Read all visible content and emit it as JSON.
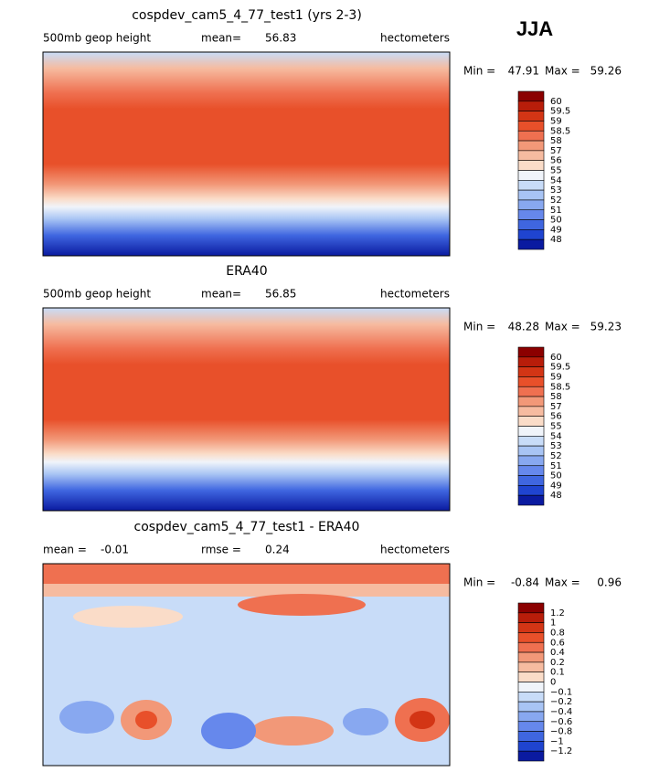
{
  "header": {
    "season": "JJA"
  },
  "panels": [
    {
      "title": "cospdev_cam5_4_77_test1 (yrs 2-3)",
      "field_label": "500mb geop height",
      "stat1": {
        "label": "mean=",
        "value": 56.83
      },
      "units": "hectometers",
      "min": {
        "label": "Min =",
        "value": 47.91
      },
      "max": {
        "label": "Max =",
        "value": 59.26
      },
      "colorbar": {
        "labels": [
          "60",
          "59.5",
          "59",
          "58.5",
          "58",
          "57",
          "56",
          "55",
          "54",
          "53",
          "52",
          "51",
          "50",
          "49",
          "48"
        ],
        "colors": [
          "#8b0000",
          "#b81d0a",
          "#d33515",
          "#e8502a",
          "#ef7050",
          "#f29878",
          "#f6bba0",
          "#fadcc8",
          "#f0f4fa",
          "#c8dcf8",
          "#a8c4f4",
          "#88a8f0",
          "#6688ec",
          "#3f66e0",
          "#1f44d0",
          "#0a1aa0"
        ]
      }
    },
    {
      "title": "ERA40",
      "field_label": "500mb geop height",
      "stat1": {
        "label": "mean=",
        "value": 56.85
      },
      "units": "hectometers",
      "min": {
        "label": "Min =",
        "value": 48.28
      },
      "max": {
        "label": "Max =",
        "value": 59.23
      },
      "colorbar": {
        "labels": [
          "60",
          "59.5",
          "59",
          "58.5",
          "58",
          "57",
          "56",
          "55",
          "54",
          "53",
          "52",
          "51",
          "50",
          "49",
          "48"
        ],
        "colors": [
          "#8b0000",
          "#b81d0a",
          "#d33515",
          "#e8502a",
          "#ef7050",
          "#f29878",
          "#f6bba0",
          "#fadcc8",
          "#f0f4fa",
          "#c8dcf8",
          "#a8c4f4",
          "#88a8f0",
          "#6688ec",
          "#3f66e0",
          "#1f44d0",
          "#0a1aa0"
        ]
      }
    },
    {
      "title": "cospdev_cam5_4_77_test1 - ERA40",
      "field_label": "mean =",
      "stat1": {
        "label": "rmse =",
        "value": 0.24
      },
      "stat0": -0.01,
      "units": "hectometers",
      "min": {
        "label": "Min =",
        "value": -0.84
      },
      "max": {
        "label": "Max =",
        "value": 0.96
      },
      "colorbar": {
        "labels": [
          "1.2",
          "1",
          "0.8",
          "0.6",
          "0.4",
          "0.2",
          "0.1",
          "0",
          "−0.1",
          "−0.2",
          "−0.4",
          "−0.6",
          "−0.8",
          "−1",
          "−1.2"
        ],
        "colors": [
          "#8b0000",
          "#b81d0a",
          "#d33515",
          "#e8502a",
          "#ef7050",
          "#f29878",
          "#f6bba0",
          "#fadcc8",
          "#f0f4fa",
          "#c8dcf8",
          "#a8c4f4",
          "#88a8f0",
          "#6688ec",
          "#3f66e0",
          "#1f44d0",
          "#0a1aa0"
        ]
      }
    }
  ]
}
